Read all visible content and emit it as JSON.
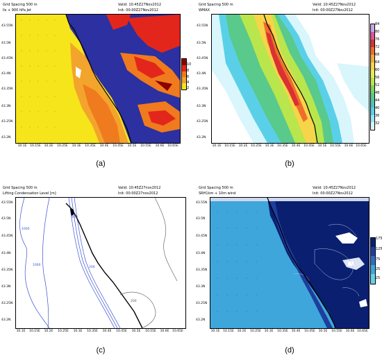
{
  "panels": {
    "a": {
      "header_left_1": "Grid Spacing 500  m",
      "header_left_2": "lls + 900 hPa Jet",
      "header_right_1": "Valid:  10:45Z27Nov2012",
      "header_right_2": "Init:  00:00Z27Nov2012",
      "caption": "(a)",
      "colorbar_ticks": [
        "10",
        "8",
        "6",
        "4",
        "2"
      ]
    },
    "b": {
      "header_left_1": "Grid Spacing 500  m",
      "header_left_2": "WMAX",
      "header_right_1": "Valid:  10:45Z27Nov2012",
      "header_right_2": "Init:  00:00Z27Nov2012",
      "caption": "(b)",
      "colorbar_ticks": [
        "84",
        "80",
        "76",
        "72",
        "68",
        "64",
        "60",
        "56",
        "52",
        "48",
        "44",
        "40",
        "36",
        "32"
      ]
    },
    "c": {
      "header_left_1": "Grid Spacing 500  m",
      "header_left_2": "Lifting Condensation Level [m]",
      "header_right_1": "Valid:  10:45Z27nov2012",
      "header_right_2": "Init:  00:00Z27nov2012",
      "caption": "(c)",
      "contour_labels": [
        "1000",
        "1000",
        "400",
        "200",
        "200"
      ]
    },
    "d": {
      "header_left_1": "Grid Spacing 500  m",
      "header_left_2": "SRH1km + 10m wind",
      "header_right_1": "Valid:  10:45Z27Nov2012",
      "header_right_2": "Init:  00:00Z27Nov2012",
      "caption": "(d)",
      "colorbar_ticks": [
        "175",
        "125",
        "75",
        "25",
        "-25"
      ]
    }
  },
  "y_ticks": [
    "43.55N",
    "43.5N",
    "43.45N",
    "43.4N",
    "43.35N",
    "43.3N",
    "43.25N",
    "43.2N"
  ],
  "x_ticks": [
    "10.1E",
    "10.15E",
    "10.2E",
    "10.25E",
    "10.3E",
    "10.35E",
    "10.4E",
    "10.45E",
    "10.5E",
    "10.55E",
    "10.6E",
    "10.65E"
  ],
  "colors": {
    "a_scale": [
      "#8b0000",
      "#e3261c",
      "#f07a1e",
      "#f3a42c",
      "#f6e51a"
    ],
    "a_background": "#2c30a0",
    "b_scale": [
      "#c8a6e6",
      "#e0529a",
      "#d93232",
      "#ef6d2a",
      "#f6a83b",
      "#f7d44a",
      "#e8ee52",
      "#b9e64d",
      "#7dd45a",
      "#59c98c",
      "#4cc4bc",
      "#5ad0e8",
      "#96e6f6",
      "#d8f6fb"
    ],
    "d_scale": [
      "#0b1f70",
      "#1e3d9e",
      "#2e6ec4",
      "#3ea6da",
      "#66d2ee"
    ]
  }
}
